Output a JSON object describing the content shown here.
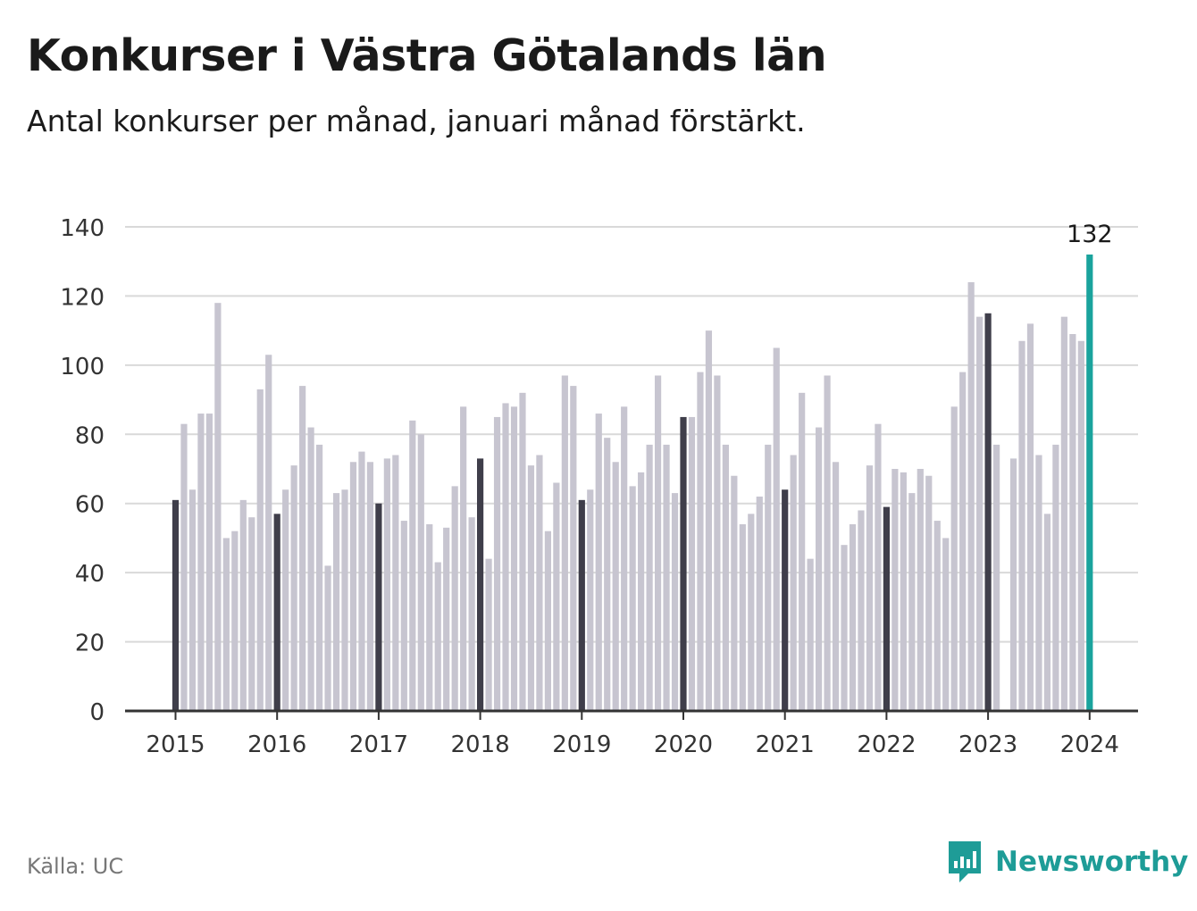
{
  "header": {
    "title": "Konkurser i Västra Götalands län",
    "subtitle": "Antal konkurser per månad, januari månad förstärkt."
  },
  "footer": {
    "source": "Källa: UC",
    "brand": "Newsworthy",
    "logo_icon": "bar-chart-speech-bubble-icon"
  },
  "colors": {
    "bar": "#c7c5d0",
    "january_bar": "#3f3e4a",
    "highlight_bar": "#1aa39d",
    "grid": "#d9d9d9",
    "axis": "#333333",
    "brand": "#1e9c97"
  },
  "chart_data": {
    "type": "bar",
    "title": "Konkurser i Västra Götalands län",
    "subtitle": "Antal konkurser per månad, januari månad förstärkt.",
    "ylim": [
      0,
      140
    ],
    "yticks": [
      0,
      20,
      40,
      60,
      80,
      100,
      120,
      140
    ],
    "xticks": [
      "2015",
      "2016",
      "2017",
      "2018",
      "2019",
      "2020",
      "2021",
      "2022",
      "2023",
      "2024"
    ],
    "grid": true,
    "start": "2015-01",
    "end": "2024-01",
    "values": [
      61,
      83,
      64,
      86,
      86,
      118,
      50,
      52,
      61,
      56,
      93,
      103,
      57,
      64,
      71,
      94,
      82,
      77,
      42,
      63,
      64,
      72,
      75,
      72,
      60,
      73,
      74,
      55,
      84,
      80,
      54,
      43,
      53,
      65,
      88,
      56,
      73,
      44,
      85,
      89,
      88,
      92,
      71,
      74,
      52,
      66,
      97,
      94,
      61,
      64,
      86,
      79,
      72,
      88,
      65,
      69,
      77,
      97,
      77,
      63,
      85,
      85,
      98,
      110,
      97,
      77,
      68,
      54,
      57,
      62,
      77,
      105,
      64,
      74,
      92,
      44,
      82,
      97,
      72,
      48,
      54,
      58,
      71,
      83,
      59,
      70,
      69,
      63,
      70,
      68,
      55,
      50,
      88,
      98,
      124,
      114,
      115,
      77,
      null,
      73,
      107,
      112,
      74,
      57,
      77,
      114,
      109,
      107,
      132
    ],
    "highlight_label": "132"
  }
}
